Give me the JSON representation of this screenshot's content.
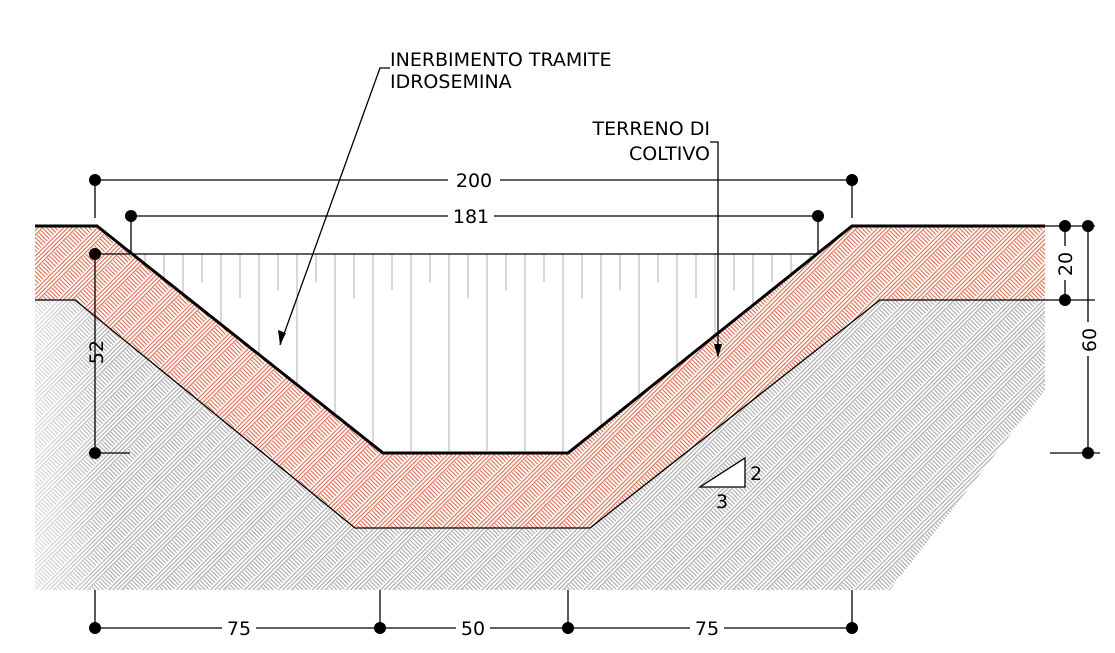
{
  "labels": {
    "label_hydroseeding_line1": "INERBIMENTO TRAMITE",
    "label_hydroseeding_line2": "IDROSEMINA",
    "label_topsoil_line1": "TERRENO DI",
    "label_topsoil_line2": "COLTIVO"
  },
  "dimensions": {
    "top_width": "200",
    "water_width": "181",
    "topsoil_depth": "20",
    "total_depth": "60",
    "channel_depth": "52",
    "bottom_left": "75",
    "bottom_center": "50",
    "bottom_right": "75"
  },
  "slope": {
    "rise": "2",
    "run": "3"
  },
  "colors": {
    "topsoil_hatch": "#e06b50",
    "subsoil_hatch": "#a8a8a8",
    "lines": "#000000"
  }
}
